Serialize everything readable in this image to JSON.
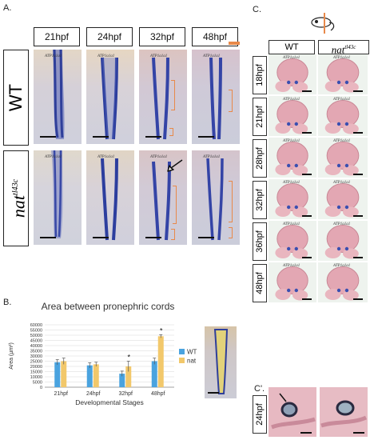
{
  "panel_a": {
    "letter": "A.",
    "stages": [
      "21hpf",
      "24hpf",
      "32hpf",
      "48hpf"
    ],
    "rows": [
      {
        "label": "WT"
      },
      {
        "label": "nat",
        "sup": "tl43c"
      }
    ],
    "gene_label": "ATP1a1a1"
  },
  "panel_b": {
    "letter": "B.",
    "title": "Area between pronephric cords",
    "ylabel": "Area (µm²)",
    "xlabel": "Developmental Stages",
    "significance_marker": "*"
  },
  "panel_c": {
    "letter": "C.",
    "sub_letter": "C'.",
    "columns": [
      {
        "label": "WT"
      },
      {
        "label": "nat",
        "sup": "tl43c"
      }
    ],
    "rows": [
      "18hpf",
      "21hpf",
      "28hpf",
      "32hpf",
      "36hpf",
      "48hpf"
    ],
    "gene_label": "ATP1a1a1",
    "detail_row": "24hpf"
  },
  "colors": {
    "wt": "#4aa3df",
    "nat": "#f2c86b",
    "bracket": "#e8894a",
    "stain": "#3a4fb0"
  },
  "chart_data": {
    "type": "bar",
    "title": "Area between pronephric cords",
    "xlabel": "Developmental Stages",
    "ylabel": "Area (µm²)",
    "categories": [
      "21hpf",
      "24hpf",
      "32hpf",
      "48hpf"
    ],
    "series": [
      {
        "name": "WT",
        "values": [
          24000,
          21000,
          13000,
          25000
        ],
        "errors": [
          2500,
          2500,
          2500,
          3000
        ]
      },
      {
        "name": "nat",
        "values": [
          25000,
          22000,
          20000,
          49000
        ],
        "errors": [
          3000,
          2000,
          5000,
          1500
        ]
      }
    ],
    "significant": [
      false,
      false,
      true,
      true
    ],
    "ylim": [
      0,
      60000
    ],
    "yticks": [
      0,
      5000,
      10000,
      15000,
      20000,
      25000,
      30000,
      35000,
      40000,
      45000,
      50000,
      55000,
      60000
    ],
    "grid": true,
    "legend_position": "right"
  }
}
